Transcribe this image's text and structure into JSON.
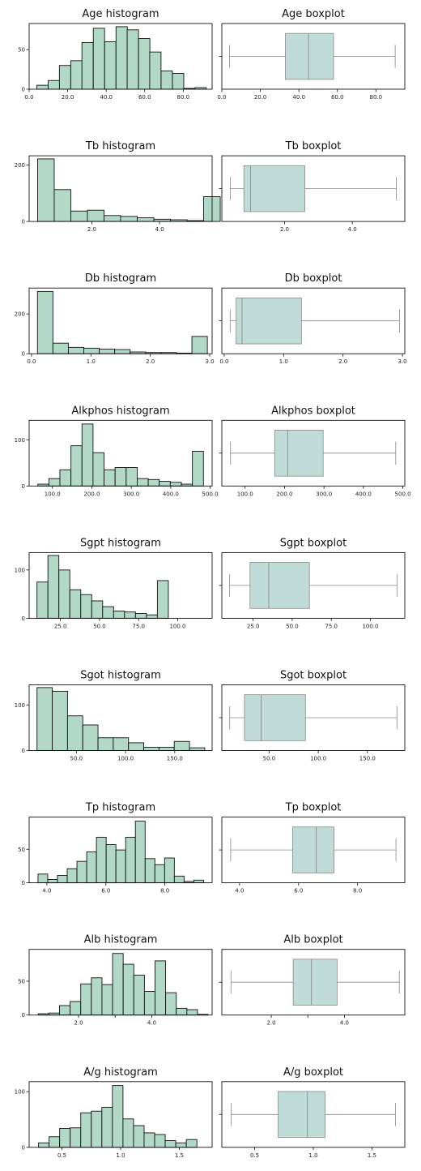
{
  "colors": {
    "bar_fill": "#b2d9c8",
    "bar_edge": "#111111",
    "box_fill": "#c0dcd9",
    "whisker": "#888888"
  },
  "chart_data": [
    {
      "type": "bar",
      "title": "Age histogram",
      "x": [
        4,
        9.9,
        15.7,
        21.6,
        27.4,
        33.3,
        39.2,
        45.1,
        50.9,
        56.8,
        62.6,
        68.5,
        74.4,
        80.2,
        86.1
      ],
      "bin_width": 5.87,
      "values": [
        5,
        11,
        30,
        36,
        59,
        77,
        60,
        79,
        75,
        64,
        47,
        23,
        20,
        1,
        2
      ],
      "xlim": [
        0,
        95
      ],
      "ylim": [
        0,
        83
      ],
      "xticks": [
        0,
        20,
        40,
        60,
        80
      ],
      "xtick_labels": [
        "0.0",
        "20.0",
        "40.0",
        "60.0",
        "80.0"
      ],
      "yticks": [
        0,
        50
      ]
    },
    {
      "type": "box",
      "title": "Age boxplot",
      "whisker_low": 4,
      "q1": 33,
      "median": 45,
      "q3": 58,
      "whisker_high": 90,
      "xlim": [
        0,
        95
      ],
      "xticks": [
        0,
        20,
        40,
        60,
        80
      ],
      "xtick_labels": [
        "0.0",
        "20.0",
        "40.0",
        "60.0",
        "80.0"
      ]
    },
    {
      "type": "bar",
      "title": "Tb histogram",
      "x": [
        0.4,
        0.89,
        1.38,
        1.87,
        2.36,
        2.85,
        3.34,
        3.83,
        4.32,
        4.81,
        5.3
      ],
      "bin_width": 0.49,
      "values": [
        222,
        113,
        37,
        40,
        21,
        18,
        13,
        8,
        6,
        3,
        88
      ],
      "xlim": [
        0.15,
        5.55
      ],
      "ylim": [
        0,
        233
      ],
      "xticks": [
        2,
        4
      ],
      "xtick_labels": [
        "2.0",
        "4.0"
      ],
      "yticks": [
        0,
        200
      ]
    },
    {
      "type": "box",
      "title": "Tb boxplot",
      "whisker_low": 0.4,
      "q1": 0.8,
      "median": 1.0,
      "q3": 2.6,
      "whisker_high": 5.3,
      "xlim": [
        0.15,
        5.55
      ],
      "xticks": [
        2,
        4
      ],
      "xtick_labels": [
        "2.0",
        "4.0"
      ]
    },
    {
      "type": "bar",
      "title": "Db histogram",
      "x": [
        0.1,
        0.36,
        0.62,
        0.88,
        1.14,
        1.4,
        1.66,
        1.92,
        2.18,
        2.44,
        2.7
      ],
      "bin_width": 0.26,
      "values": [
        313,
        53,
        32,
        28,
        23,
        21,
        9,
        6,
        6,
        3,
        87
      ],
      "xlim": [
        -0.04,
        3.04
      ],
      "ylim": [
        0,
        330
      ],
      "xticks": [
        0,
        1,
        2,
        3
      ],
      "xtick_labels": [
        "0.0",
        "1.0",
        "2.0",
        "3.0"
      ],
      "yticks": [
        0,
        200
      ]
    },
    {
      "type": "box",
      "title": "Db boxplot",
      "whisker_low": 0.1,
      "q1": 0.2,
      "median": 0.3,
      "q3": 1.3,
      "whisker_high": 2.95,
      "xlim": [
        -0.04,
        3.04
      ],
      "xticks": [
        0,
        1,
        2,
        3
      ],
      "xtick_labels": [
        "0.0",
        "1.0",
        "2.0",
        "3.0"
      ]
    },
    {
      "type": "bar",
      "title": "Alkphos histogram",
      "x": [
        63,
        91,
        119,
        147,
        175,
        203,
        231,
        259,
        287,
        315,
        343,
        371,
        399,
        427,
        455
      ],
      "bin_width": 28,
      "values": [
        4,
        16,
        35,
        87,
        134,
        72,
        35,
        40,
        40,
        16,
        14,
        10,
        8,
        4,
        75
      ],
      "xlim": [
        41,
        505
      ],
      "ylim": [
        0,
        142
      ],
      "xticks": [
        100,
        200,
        300,
        400,
        500
      ],
      "xtick_labels": [
        "100.0",
        "200.0",
        "300.0",
        "400.0",
        "500.0"
      ],
      "yticks": [
        0,
        100
      ]
    },
    {
      "type": "box",
      "title": "Alkphos boxplot",
      "whisker_low": 63,
      "q1": 175,
      "median": 208,
      "q3": 298,
      "whisker_high": 482,
      "xlim": [
        41,
        505
      ],
      "xticks": [
        100,
        200,
        300,
        400,
        500
      ],
      "xtick_labels": [
        "100.0",
        "200.0",
        "300.0",
        "400.0",
        "500.0"
      ]
    },
    {
      "type": "bar",
      "title": "Sgpt histogram",
      "x": [
        10,
        17,
        24,
        31,
        38,
        45,
        52,
        59,
        66,
        73,
        80,
        87,
        94,
        101,
        108
      ],
      "bin_width": 7,
      "values": [
        75,
        130,
        100,
        59,
        49,
        36,
        24,
        15,
        13,
        10,
        7,
        78,
        0,
        0,
        0
      ],
      "xlim": [
        5,
        122
      ],
      "ylim": [
        0,
        136
      ],
      "xticks": [
        25,
        50,
        75,
        100
      ],
      "xtick_labels": [
        "25.0",
        "50.0",
        "75.0",
        "100.0"
      ],
      "yticks": [
        0,
        100
      ]
    },
    {
      "type": "box",
      "title": "Sgpt boxplot",
      "whisker_low": 10,
      "q1": 23,
      "median": 35,
      "q3": 61,
      "whisker_high": 117,
      "xlim": [
        5,
        122
      ],
      "xticks": [
        25,
        50,
        75,
        100
      ],
      "xtick_labels": [
        "25.0",
        "50.0",
        "75.0",
        "100.0"
      ]
    },
    {
      "type": "bar",
      "title": "Sgot histogram",
      "x": [
        10,
        25.5,
        41,
        56.5,
        72,
        87.5,
        103,
        118.5,
        134,
        149.5,
        165
      ],
      "bin_width": 15.5,
      "values": [
        138,
        130,
        76,
        56,
        28,
        28,
        17,
        7,
        7,
        20,
        6
      ],
      "xlim": [
        2,
        188
      ],
      "ylim": [
        0,
        144
      ],
      "xticks": [
        50,
        100,
        150
      ],
      "xtick_labels": [
        "50.0",
        "100.0",
        "150.0"
      ],
      "yticks": [
        0,
        100
      ]
    },
    {
      "type": "box",
      "title": "Sgot boxplot",
      "whisker_low": 10,
      "q1": 25,
      "median": 42,
      "q3": 87,
      "whisker_high": 180,
      "xlim": [
        2,
        188
      ],
      "xticks": [
        50,
        100,
        150
      ],
      "xtick_labels": [
        "50.0",
        "100.0",
        "150.0"
      ]
    },
    {
      "type": "bar",
      "title": "Tp histogram",
      "x": [
        3.7,
        4.03,
        4.36,
        4.69,
        5.02,
        5.35,
        5.68,
        6.01,
        6.34,
        6.67,
        7.0,
        7.33,
        7.66,
        7.99,
        8.32,
        8.65,
        8.98
      ],
      "bin_width": 0.33,
      "values": [
        13,
        5,
        11,
        21,
        32,
        46,
        68,
        57,
        49,
        68,
        92,
        36,
        27,
        37,
        10,
        2,
        4
      ],
      "xlim": [
        3.4,
        9.6
      ],
      "ylim": [
        0,
        98
      ],
      "xticks": [
        4,
        6,
        8
      ],
      "xtick_labels": [
        "4.0",
        "6.0",
        "8.0"
      ],
      "yticks": [
        0,
        50
      ]
    },
    {
      "type": "box",
      "title": "Tp boxplot",
      "whisker_low": 3.7,
      "q1": 5.8,
      "median": 6.6,
      "q3": 7.2,
      "whisker_high": 9.3,
      "xlim": [
        3.4,
        9.6
      ],
      "xticks": [
        4,
        6,
        8
      ],
      "xtick_labels": [
        "4.0",
        "6.0",
        "8.0"
      ]
    },
    {
      "type": "bar",
      "title": "Alb histogram",
      "x": [
        0.9,
        1.19,
        1.48,
        1.77,
        2.06,
        2.35,
        2.64,
        2.93,
        3.22,
        3.51,
        3.8,
        4.09,
        4.38,
        4.67,
        4.96,
        5.25
      ],
      "bin_width": 0.29,
      "values": [
        2,
        3,
        14,
        20,
        46,
        55,
        45,
        91,
        75,
        59,
        35,
        80,
        33,
        10,
        8,
        1
      ],
      "xlim": [
        0.65,
        5.65
      ],
      "ylim": [
        0,
        97
      ],
      "xticks": [
        2,
        3,
        4
      ],
      "xtick_labels": [
        "2.0",
        "",
        "4.0"
      ],
      "yticks": [
        0,
        50
      ]
    },
    {
      "type": "box",
      "title": "Alb boxplot",
      "whisker_low": 0.9,
      "q1": 2.6,
      "median": 3.1,
      "q3": 3.8,
      "whisker_high": 5.5,
      "xlim": [
        0.65,
        5.65
      ],
      "xticks": [
        2,
        3,
        4
      ],
      "xtick_labels": [
        "2.0",
        "",
        "4.0"
      ]
    },
    {
      "type": "bar",
      "title": "A/g histogram",
      "x": [
        0.3,
        0.39,
        0.48,
        0.57,
        0.66,
        0.75,
        0.84,
        0.93,
        1.02,
        1.11,
        1.2,
        1.29,
        1.38,
        1.47,
        1.56,
        1.65
      ],
      "bin_width": 0.09,
      "values": [
        8,
        19,
        34,
        35,
        62,
        65,
        72,
        111,
        51,
        39,
        26,
        23,
        12,
        8,
        14,
        0
      ],
      "xlim": [
        0.22,
        1.78
      ],
      "ylim": [
        0,
        118
      ],
      "xticks": [
        0.5,
        1.0,
        1.5
      ],
      "xtick_labels": [
        "0.5",
        "1.0",
        "1.5"
      ],
      "yticks": [
        0,
        100
      ]
    },
    {
      "type": "box",
      "title": "A/g boxplot",
      "whisker_low": 0.3,
      "q1": 0.7,
      "median": 0.95,
      "q3": 1.1,
      "whisker_high": 1.7,
      "xlim": [
        0.22,
        1.78
      ],
      "xticks": [
        0.5,
        1.0,
        1.5
      ],
      "xtick_labels": [
        "0.5",
        "1.0",
        "1.5"
      ]
    }
  ]
}
